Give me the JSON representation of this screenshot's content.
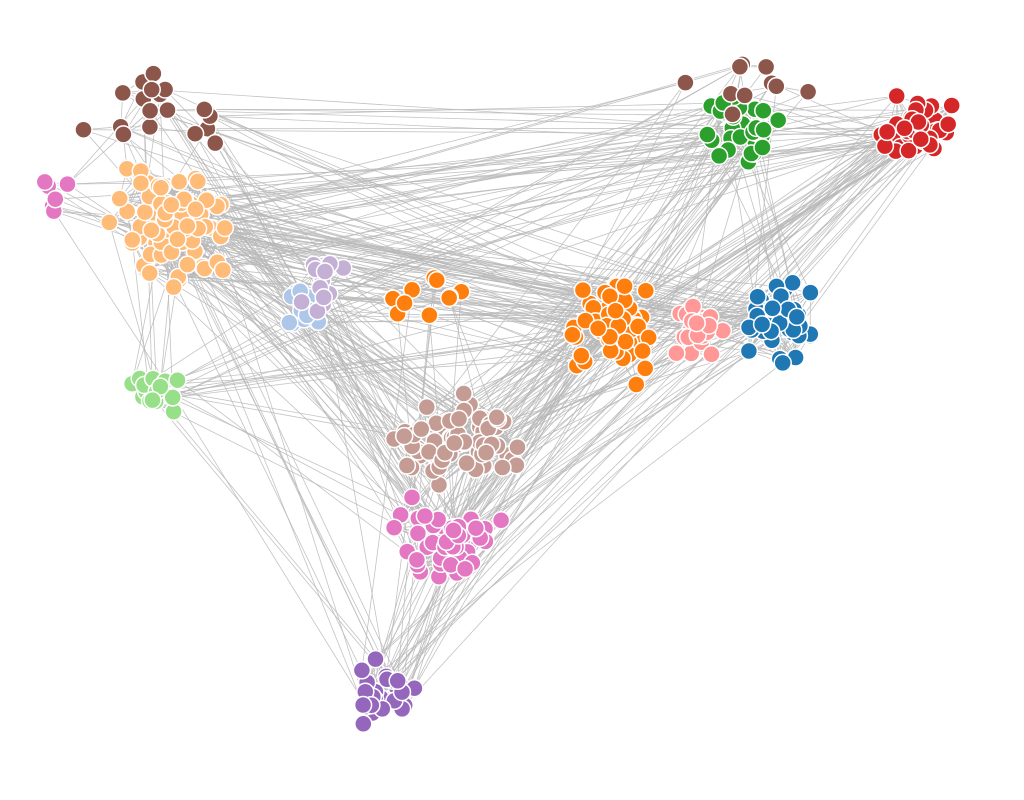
{
  "graph": {
    "type": "force-directed-network",
    "node_count": 400,
    "edge_color": "#bbbbbb",
    "node_outline": "#ffffff",
    "communities": [
      {
        "key": "blue",
        "color": "#1f77b4"
      },
      {
        "key": "orange",
        "color": "#ff7f0e"
      },
      {
        "key": "green",
        "color": "#2ca02c"
      },
      {
        "key": "red",
        "color": "#d62728"
      },
      {
        "key": "brown",
        "color": "#8c564b"
      },
      {
        "key": "light-orange",
        "color": "#ffbb78"
      },
      {
        "key": "light-green",
        "color": "#98df8a"
      },
      {
        "key": "light-blue",
        "color": "#aec7e8"
      },
      {
        "key": "lavender",
        "color": "#c5b0d5"
      },
      {
        "key": "pink",
        "color": "#e377c2"
      },
      {
        "key": "salmon",
        "color": "#ff9896"
      },
      {
        "key": "rosy-brown",
        "color": "#c49c94"
      },
      {
        "key": "purple",
        "color": "#9467bd"
      }
    ]
  }
}
